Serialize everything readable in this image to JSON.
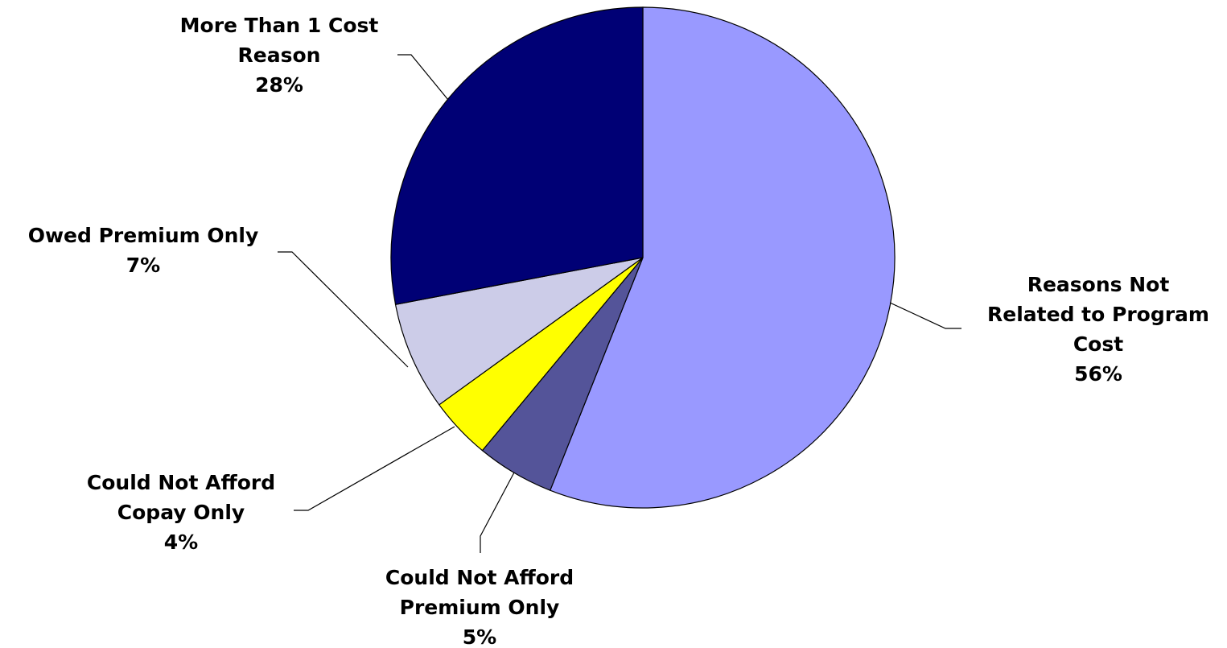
{
  "chart_data": {
    "type": "pie",
    "title": "",
    "legend": "none",
    "slices": [
      {
        "label_lines": [
          "Reasons Not",
          "Related to Program",
          "Cost"
        ],
        "label": "Reasons Not Related to Program Cost",
        "value": 56,
        "pct": "56%",
        "color": "#9999FF"
      },
      {
        "label_lines": [
          "Could Not Afford",
          "Premium Only"
        ],
        "label": "Could Not Afford Premium Only",
        "value": 5,
        "pct": "5%",
        "color": "#545499"
      },
      {
        "label_lines": [
          "Could Not Afford",
          "Copay Only"
        ],
        "label": "Could Not Afford Copay Only",
        "value": 4,
        "pct": "4%",
        "color": "#FFFF00"
      },
      {
        "label_lines": [
          "Owed Premium Only"
        ],
        "label": "Owed Premium Only",
        "value": 7,
        "pct": "7%",
        "color": "#CCCCE8"
      },
      {
        "label_lines": [
          "More Than 1 Cost",
          "Reason"
        ],
        "label": "More Than 1 Cost Reason",
        "value": 28,
        "pct": "28%",
        "color": "#000075"
      }
    ]
  }
}
